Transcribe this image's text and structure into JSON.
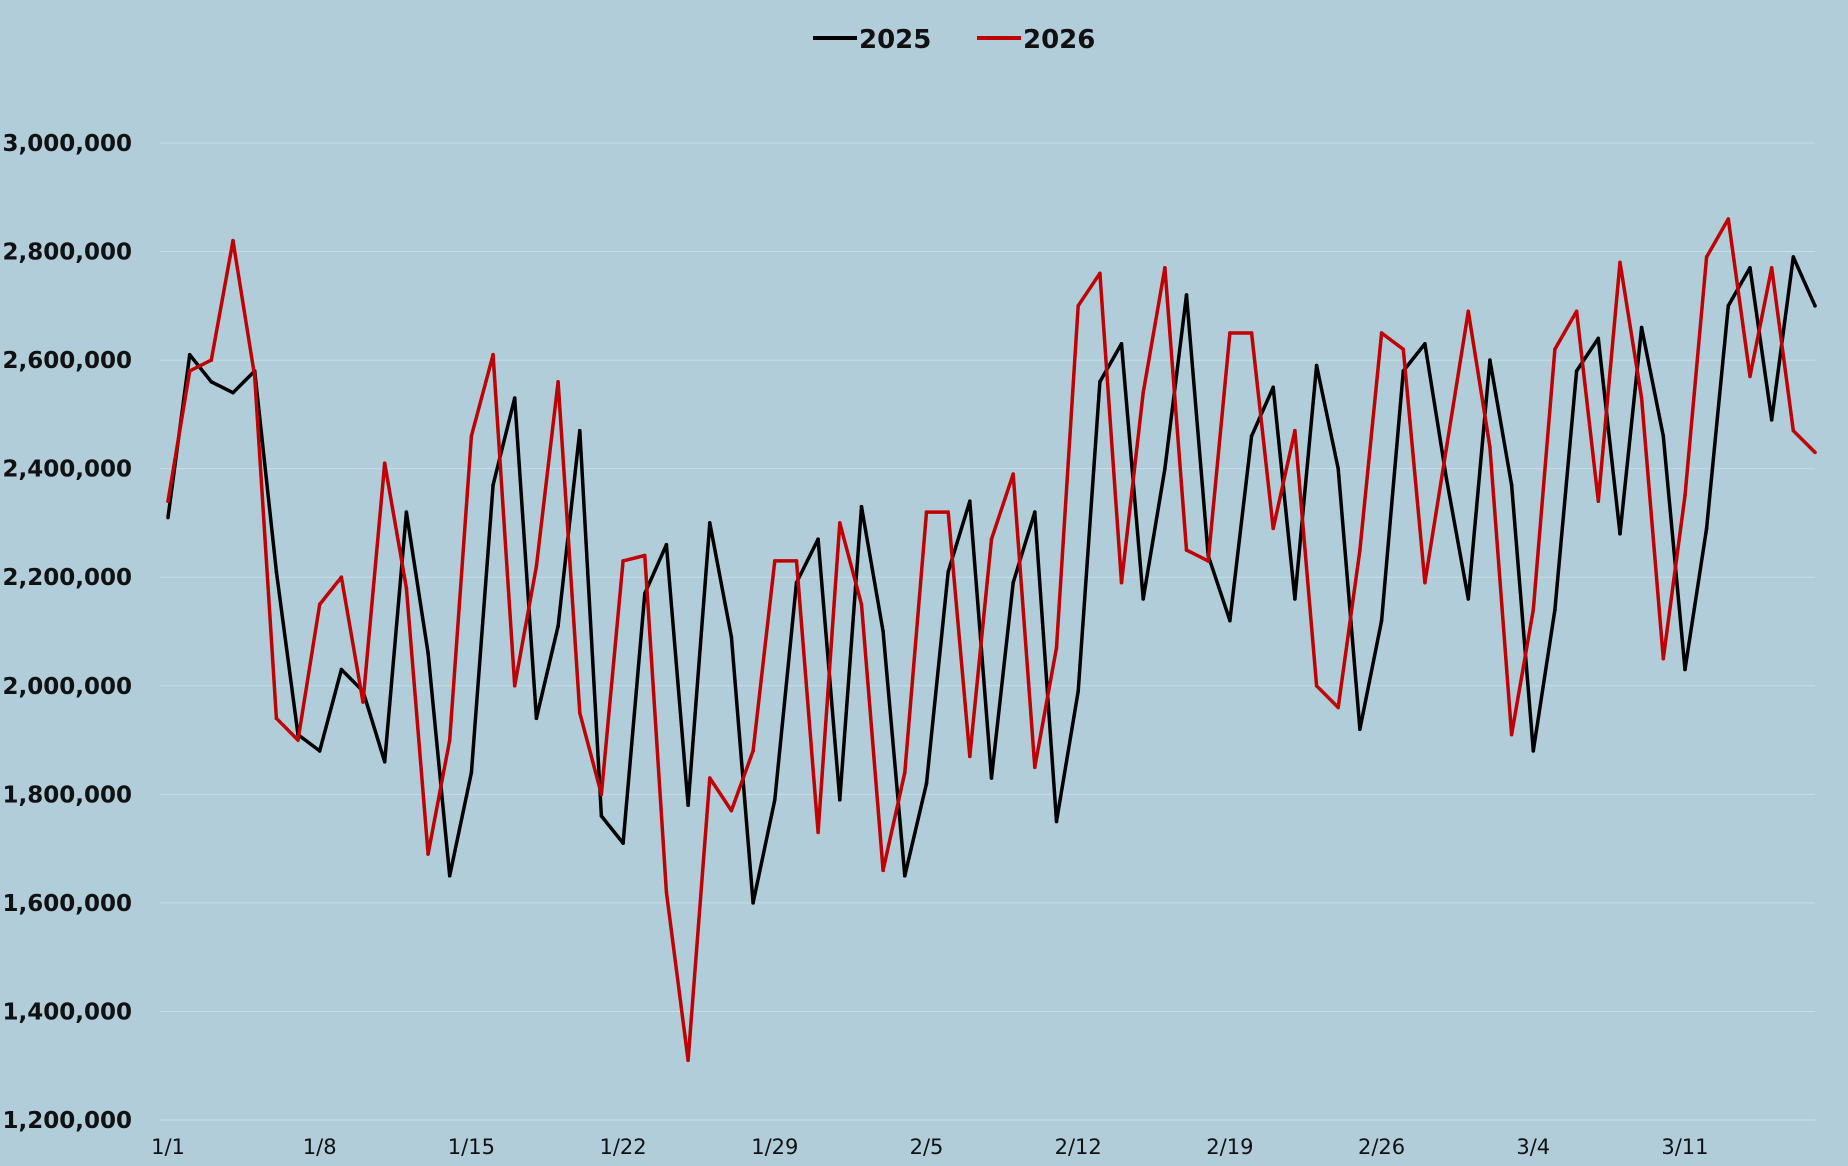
{
  "chart_data": {
    "type": "line",
    "title": "",
    "xlabel": "",
    "ylabel": "",
    "ylim": [
      1200000,
      3000000
    ],
    "y_ticks": [
      1200000,
      1400000,
      1600000,
      1800000,
      2000000,
      2200000,
      2400000,
      2600000,
      2800000,
      3000000
    ],
    "y_tick_labels": [
      "1,200,000",
      "1,400,000",
      "1,600,000",
      "1,800,000",
      "2,000,000",
      "2,200,000",
      "2,400,000",
      "2,600,000",
      "2,800,000",
      "3,000,000"
    ],
    "x_start": "1/1",
    "x_tick_labels": [
      "1/1",
      "1/8",
      "1/15",
      "1/22",
      "1/29",
      "2/5",
      "2/12",
      "2/19",
      "2/26",
      "3/4",
      "3/11"
    ],
    "x_tick_step": 7,
    "grid": true,
    "legend_position": "top-center",
    "colors": {
      "background": "#b0cdd9",
      "grid": "#c9dde6"
    },
    "series": [
      {
        "name": "2025",
        "color": "#000000",
        "values": [
          2310000,
          2610000,
          2560000,
          2540000,
          2580000,
          2210000,
          1910000,
          1880000,
          2030000,
          1990000,
          1860000,
          2320000,
          2060000,
          1650000,
          1840000,
          2370000,
          2530000,
          1940000,
          2110000,
          2470000,
          1760000,
          1710000,
          2170000,
          2260000,
          1780000,
          2300000,
          2090000,
          1600000,
          1790000,
          2190000,
          2270000,
          1790000,
          2330000,
          2100000,
          1650000,
          1820000,
          2210000,
          2340000,
          1830000,
          2190000,
          2320000,
          1750000,
          1990000,
          2560000,
          2630000,
          2160000,
          2400000,
          2720000,
          2240000,
          2120000,
          2460000,
          2550000,
          2160000,
          2590000,
          2400000,
          1920000,
          2120000,
          2580000,
          2630000,
          2380000,
          2160000,
          2600000,
          2370000,
          1880000,
          2140000,
          2580000,
          2640000,
          2280000,
          2660000,
          2460000,
          2030000,
          2290000,
          2700000,
          2770000,
          2490000,
          2790000,
          2700000
        ]
      },
      {
        "name": "2026",
        "color": "#c00000",
        "values": [
          2340000,
          2580000,
          2600000,
          2820000,
          2570000,
          1940000,
          1900000,
          2150000,
          2200000,
          1970000,
          2410000,
          2180000,
          1690000,
          1900000,
          2460000,
          2610000,
          2000000,
          2220000,
          2560000,
          1950000,
          1800000,
          2230000,
          2240000,
          1620000,
          1310000,
          1830000,
          1770000,
          1880000,
          2230000,
          2230000,
          1730000,
          2300000,
          2150000,
          1660000,
          1840000,
          2320000,
          2320000,
          1870000,
          2270000,
          2390000,
          1850000,
          2070000,
          2700000,
          2760000,
          2190000,
          2540000,
          2770000,
          2250000,
          2230000,
          2650000,
          2650000,
          2290000,
          2470000,
          2000000,
          1960000,
          2250000,
          2650000,
          2620000,
          2190000,
          2440000,
          2690000,
          2440000,
          1910000,
          2140000,
          2620000,
          2690000,
          2340000,
          2780000,
          2530000,
          2050000,
          2350000,
          2790000,
          2860000,
          2570000,
          2770000,
          2470000,
          2430000
        ]
      }
    ]
  }
}
